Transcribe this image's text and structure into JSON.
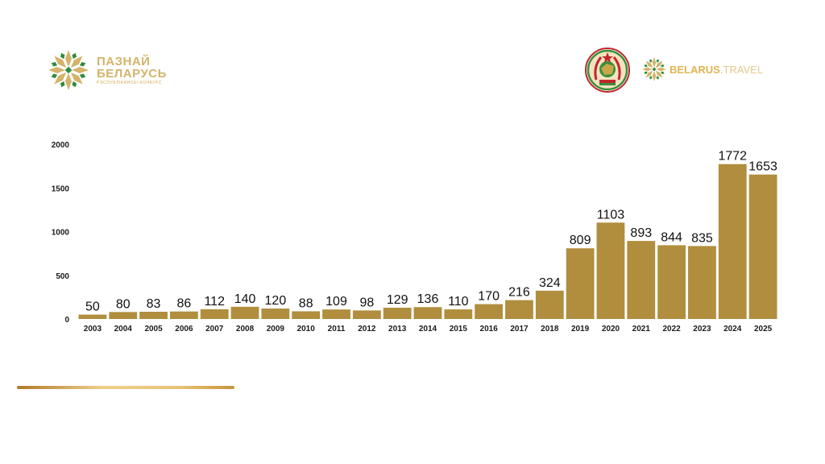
{
  "header": {
    "left_logo": {
      "line1": "ПАЗНАЙ",
      "line2": "БЕЛАРУСЬ",
      "subtitle": "РЭСПУБЛІКАНСКІ КОНКУРС",
      "icon": "star-ornament-icon"
    },
    "emblem": {
      "icon": "belarus-emblem-icon"
    },
    "right_logo": {
      "name": "BELARUS",
      "dot": ".",
      "tld": "TRAVEL",
      "icon": "star-ornament-icon"
    }
  },
  "colors": {
    "bar": "#b08e3e",
    "logo_gold": "#d4b36a",
    "ornament_green": "#2e8b3c",
    "emblem_red": "#c1272d",
    "emblem_green": "#3a8f3a"
  },
  "chart_data": {
    "type": "bar",
    "title": "",
    "xlabel": "",
    "ylabel": "",
    "categories": [
      "2003",
      "2004",
      "2005",
      "2006",
      "2007",
      "2008",
      "2009",
      "2010",
      "2011",
      "2012",
      "2013",
      "2014",
      "2015",
      "2016",
      "2017",
      "2018",
      "2019",
      "2020",
      "2021",
      "2022",
      "2023",
      "2024",
      "2025"
    ],
    "values": [
      50,
      80,
      83,
      86,
      112,
      140,
      120,
      88,
      109,
      98,
      129,
      136,
      110,
      170,
      216,
      324,
      809,
      1103,
      893,
      844,
      835,
      1772,
      1653
    ],
    "yticks": [
      0,
      500,
      1000,
      1500,
      2000
    ],
    "ylim": [
      0,
      2000
    ],
    "grid": false,
    "legend": "none",
    "data_labels": true
  }
}
